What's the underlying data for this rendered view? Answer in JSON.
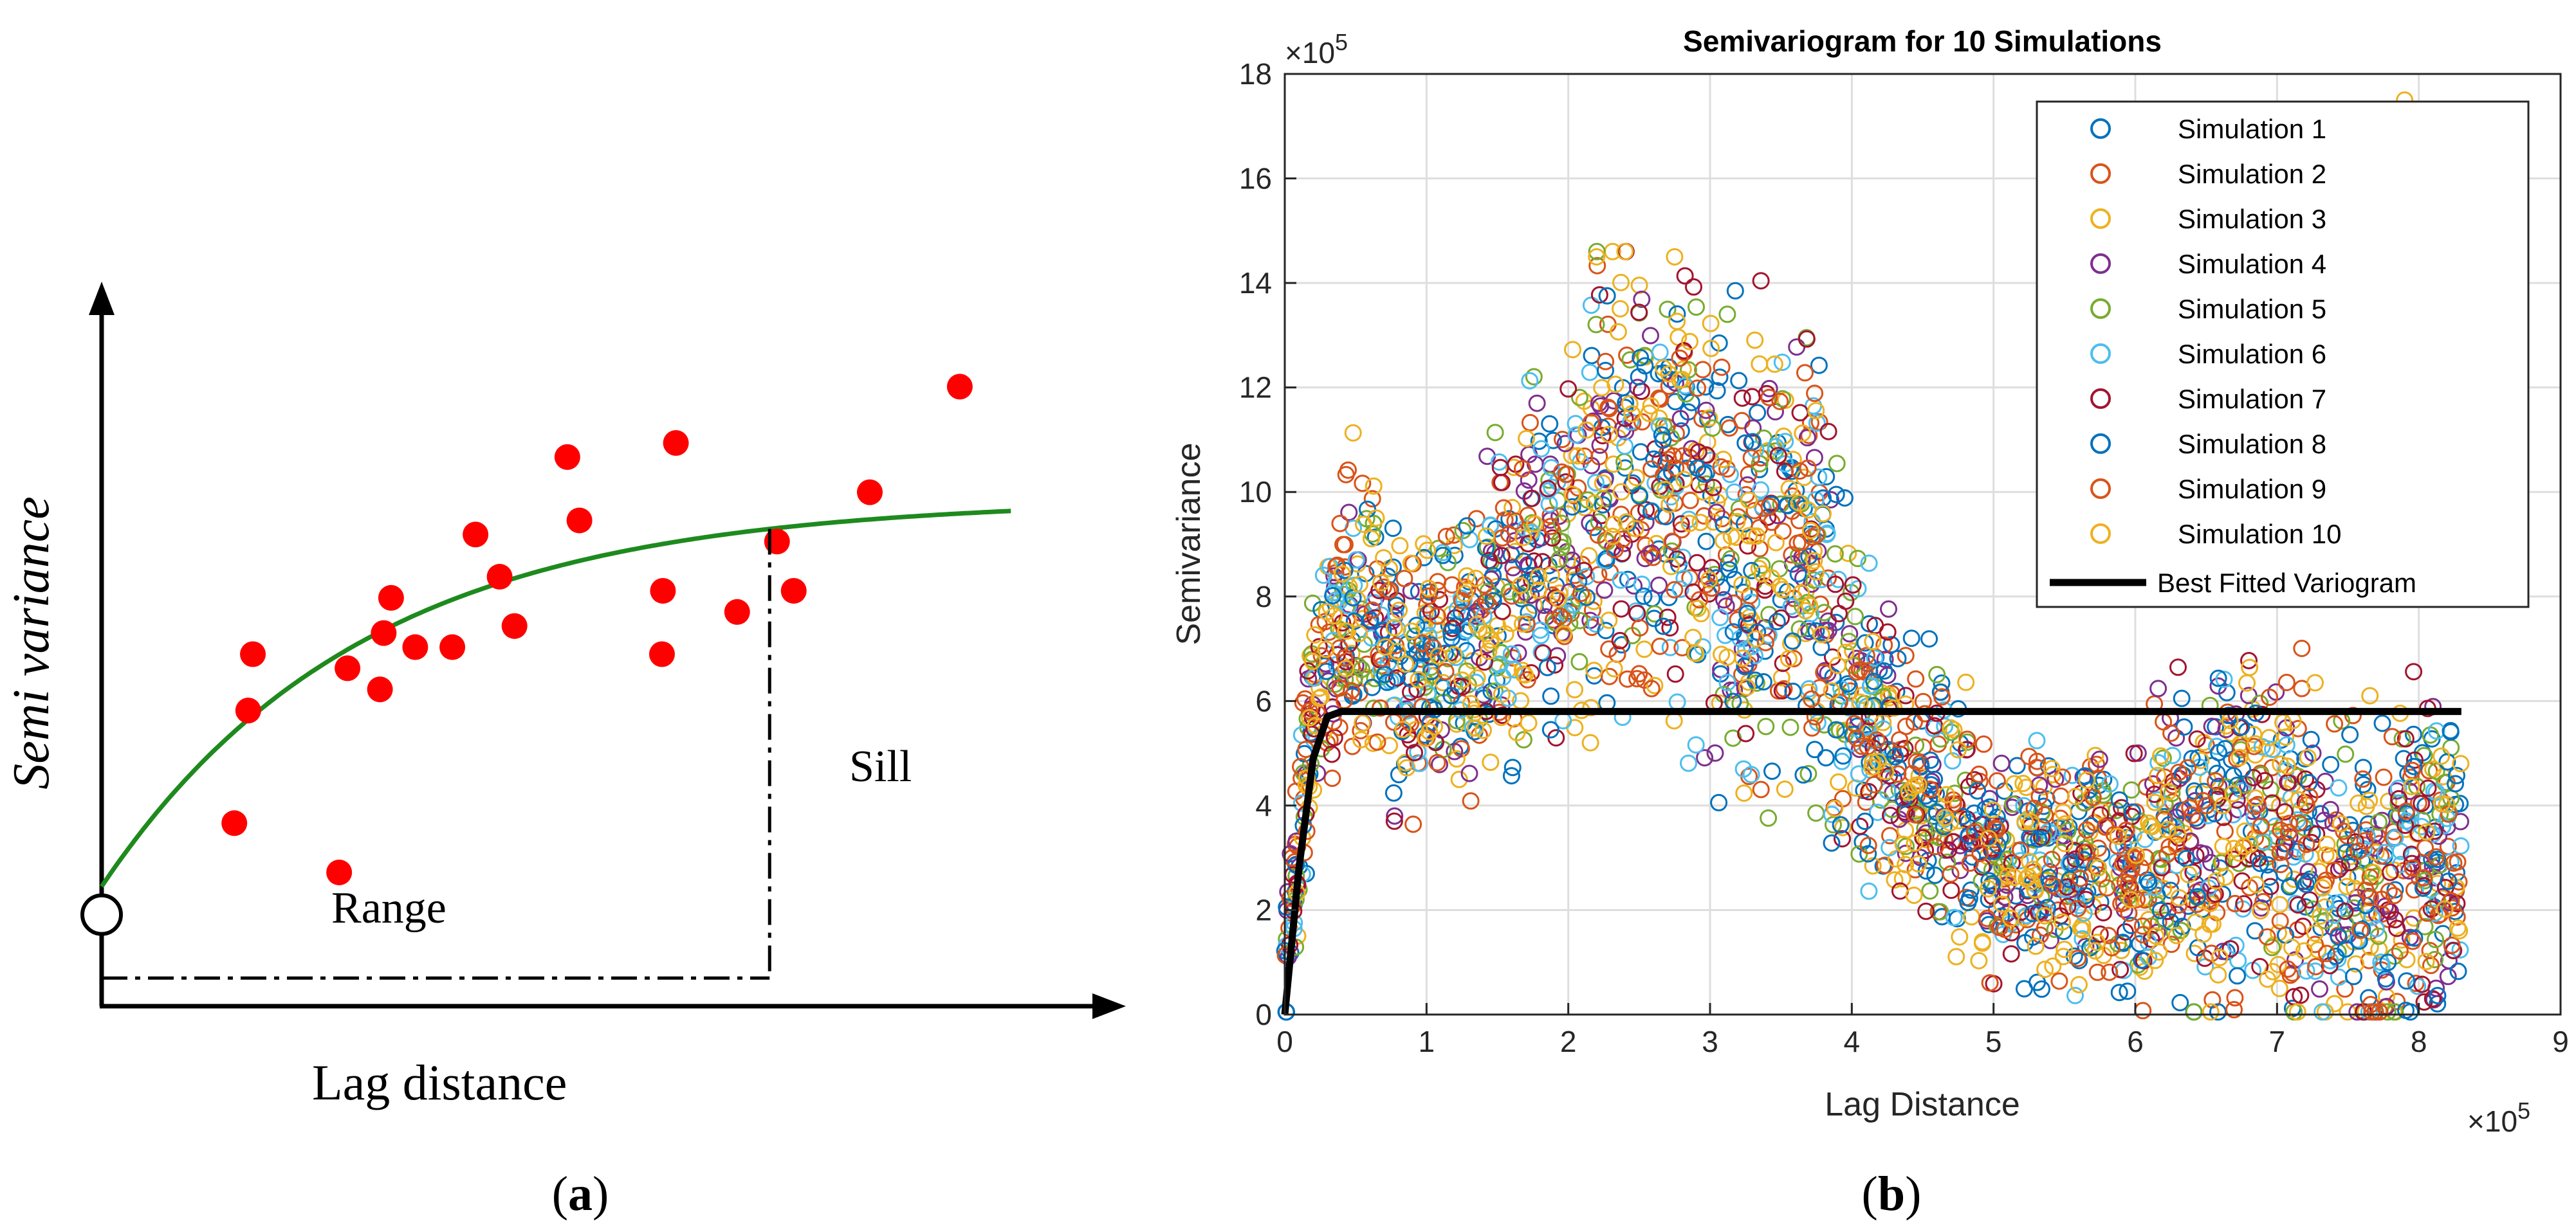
{
  "panel_a": {
    "caption_open": "(",
    "caption_letter": "a",
    "caption_close": ")",
    "chart_data": {
      "type": "scatter",
      "title": "",
      "xlabel": "Lag distance",
      "ylabel": "Semi variance",
      "xlim": [
        0,
        100
      ],
      "ylim": [
        0,
        100
      ],
      "annotations": {
        "range": "Range",
        "sill": "Sill"
      },
      "points": [
        {
          "x": 14.3,
          "y": 26
        },
        {
          "x": 15.8,
          "y": 42
        },
        {
          "x": 16.3,
          "y": 50
        },
        {
          "x": 25.6,
          "y": 19
        },
        {
          "x": 26.5,
          "y": 48
        },
        {
          "x": 30.0,
          "y": 45
        },
        {
          "x": 30.4,
          "y": 53
        },
        {
          "x": 31.2,
          "y": 58
        },
        {
          "x": 33.8,
          "y": 51
        },
        {
          "x": 37.8,
          "y": 51
        },
        {
          "x": 40.3,
          "y": 67
        },
        {
          "x": 42.9,
          "y": 61
        },
        {
          "x": 44.5,
          "y": 54
        },
        {
          "x": 50.2,
          "y": 78
        },
        {
          "x": 51.5,
          "y": 69
        },
        {
          "x": 60.4,
          "y": 50
        },
        {
          "x": 60.5,
          "y": 59
        },
        {
          "x": 61.9,
          "y": 80
        },
        {
          "x": 68.5,
          "y": 56
        },
        {
          "x": 72.8,
          "y": 66
        },
        {
          "x": 74.6,
          "y": 59
        },
        {
          "x": 82.8,
          "y": 73
        },
        {
          "x": 92.5,
          "y": 88
        }
      ],
      "fitted_curve": {
        "nugget": 17,
        "sill": 72,
        "scale": 28
      },
      "range_x": 72,
      "nugget_marker_y": 13,
      "range_line_y": 4
    }
  },
  "panel_b": {
    "caption_open": "(",
    "caption_letter": "b",
    "caption_close": ")",
    "chart_data": {
      "type": "scatter",
      "title": "Semivariogram for 10 Simulations",
      "xlabel": "Lag Distance",
      "ylabel": "Semivariance",
      "x_multiplier": "×10",
      "x_multiplier_exp": "5",
      "y_multiplier": "×10",
      "y_multiplier_exp": "5",
      "xlim": [
        0,
        9
      ],
      "ylim": [
        0,
        18
      ],
      "xticks": [
        0,
        1,
        2,
        3,
        4,
        5,
        6,
        7,
        8,
        9
      ],
      "yticks": [
        0,
        2,
        4,
        6,
        8,
        10,
        12,
        14,
        16,
        18
      ],
      "grid": true,
      "legend_position": "top-right",
      "series": [
        {
          "name": "Simulation 1",
          "color": "#0072BD"
        },
        {
          "name": "Simulation 2",
          "color": "#D95319"
        },
        {
          "name": "Simulation 3",
          "color": "#EDB120"
        },
        {
          "name": "Simulation 4",
          "color": "#7E2F8E"
        },
        {
          "name": "Simulation 5",
          "color": "#77AC30"
        },
        {
          "name": "Simulation 6",
          "color": "#4DBEEE"
        },
        {
          "name": "Simulation 7",
          "color": "#A2142F"
        },
        {
          "name": "Simulation 8",
          "color": "#0072BD"
        },
        {
          "name": "Simulation 9",
          "color": "#D95319"
        },
        {
          "name": "Simulation 10",
          "color": "#EDB120"
        }
      ],
      "envelope": {
        "x": [
          0,
          0.2,
          0.4,
          0.6,
          0.8,
          1.0,
          1.2,
          1.4,
          1.6,
          1.8,
          2.0,
          2.2,
          2.4,
          2.6,
          2.8,
          3.0,
          3.2,
          3.4,
          3.6,
          3.8,
          4.0,
          4.2,
          4.4,
          4.6,
          4.8,
          5.0,
          5.2,
          5.4,
          5.6,
          5.8,
          6.0,
          6.2,
          6.4,
          6.6,
          6.8,
          7.0,
          7.2,
          7.4,
          7.6,
          7.8,
          8.0,
          8.2,
          8.3
        ],
        "mean": [
          1.0,
          6.0,
          7.5,
          7.8,
          6.5,
          6.5,
          7.0,
          7.0,
          8.5,
          8.5,
          9.0,
          10.0,
          10.0,
          10.5,
          10.5,
          9.5,
          8.5,
          9.0,
          9.0,
          8.0,
          6.0,
          5.0,
          4.5,
          4.0,
          3.5,
          3.0,
          3.0,
          3.0,
          2.8,
          2.8,
          2.5,
          3.0,
          3.5,
          3.5,
          4.0,
          3.5,
          3.0,
          2.5,
          2.5,
          2.5,
          3.0,
          3.0,
          2.5
        ],
        "spread": [
          1.0,
          1.5,
          2.0,
          2.0,
          2.0,
          2.0,
          2.0,
          2.0,
          2.5,
          2.5,
          2.5,
          3.0,
          3.5,
          3.5,
          3.0,
          3.0,
          3.0,
          3.0,
          3.0,
          3.0,
          2.5,
          2.0,
          2.0,
          1.8,
          1.8,
          1.6,
          1.6,
          1.6,
          1.6,
          1.6,
          1.6,
          2.0,
          2.5,
          2.5,
          2.5,
          2.5,
          2.5,
          2.5,
          2.5,
          2.5,
          2.5,
          2.0,
          2.0
        ]
      },
      "points_per_series": 280,
      "best_fit": {
        "name": "Best Fitted Variogram",
        "color": "#000000",
        "x": [
          0,
          0.1,
          0.2,
          0.3,
          0.4,
          8.3
        ],
        "y": [
          0,
          2.8,
          4.9,
          5.7,
          5.8,
          5.8
        ]
      },
      "outliers": [
        {
          "x": 7.9,
          "y": 17.5
        },
        {
          "x": 2.75,
          "y": 14.5
        },
        {
          "x": 2.2,
          "y": 14.5
        }
      ]
    }
  }
}
